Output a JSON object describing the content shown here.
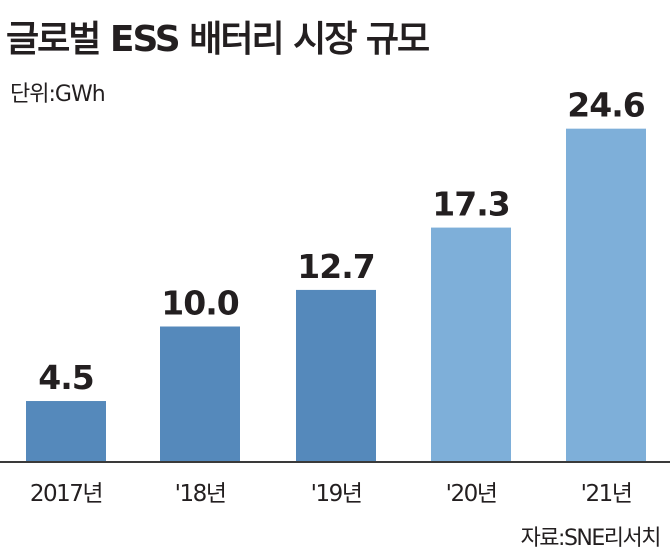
{
  "title": "글로벌 ESS 배터리 시장 규모",
  "unit": "단위:GWh",
  "source": "자료:SNE리서치",
  "chart_data": {
    "type": "bar",
    "title": "글로벌 ESS 배터리 시장 규모",
    "ylabel": "단위:GWh",
    "categories": [
      "2017년",
      "'18년",
      "'19년",
      "'20년",
      "'21년"
    ],
    "values": [
      4.5,
      10.0,
      12.7,
      17.3,
      24.6
    ],
    "value_labels": [
      "4.5",
      "10.0",
      "12.7",
      "17.3",
      "24.6"
    ],
    "ylim": [
      0,
      25
    ],
    "grid": false,
    "colors": [
      "#5589bb",
      "#5589bb",
      "#5589bb",
      "#7eafd9",
      "#7eafd9"
    ]
  }
}
